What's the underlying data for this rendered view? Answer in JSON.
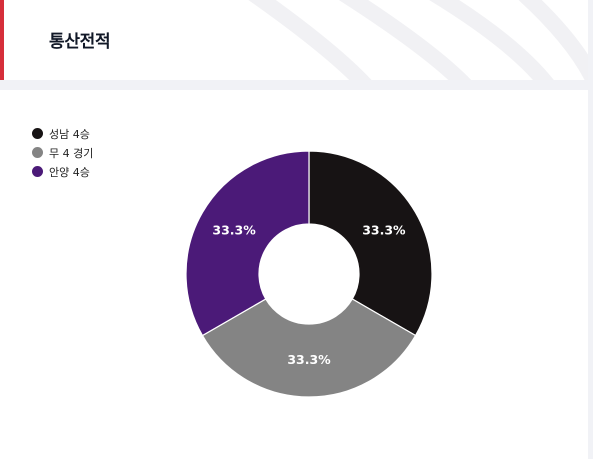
{
  "header": {
    "title": "통산전적"
  },
  "colors": {
    "accent": "#d62e3a"
  },
  "chart_data": {
    "type": "pie",
    "donut": true,
    "legend_position": "top-left",
    "series": [
      {
        "name": "성남 4승",
        "value": 4,
        "percent_label": "33.3%",
        "color": "#171314"
      },
      {
        "name": "무 4 경기",
        "value": 4,
        "percent_label": "33.3%",
        "color": "#848484"
      },
      {
        "name": "안양 4승",
        "value": 4,
        "percent_label": "33.3%",
        "color": "#4b1a78"
      }
    ]
  }
}
